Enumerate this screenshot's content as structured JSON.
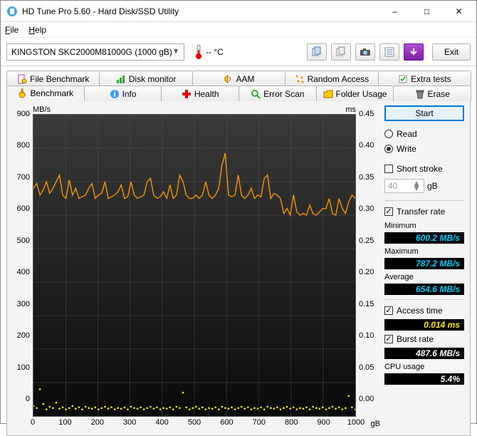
{
  "window": {
    "title": "HD Tune Pro 5.60 - Hard Disk/SSD Utility"
  },
  "menu": {
    "file": "File",
    "help": "Help"
  },
  "toolbar": {
    "drive": "KINGSTON SKC2000M81000G (1000 gB)",
    "temp": "-- °C",
    "exit": "Exit"
  },
  "tabs": {
    "row1": [
      "File Benchmark",
      "Disk monitor",
      "AAM",
      "Random Access",
      "Extra tests"
    ],
    "row2": [
      "Benchmark",
      "Info",
      "Health",
      "Error Scan",
      "Folder Usage",
      "Erase"
    ]
  },
  "chart": {
    "y_left_unit": "MB/s",
    "y_right_unit": "ms",
    "x_unit": "gB",
    "y_left": {
      "min": 0,
      "max": 900,
      "ticks": [
        0,
        100,
        200,
        300,
        400,
        500,
        600,
        700,
        800,
        900
      ]
    },
    "y_right": {
      "min": 0,
      "max": 0.45,
      "ticks": [
        "0.00",
        "0.05",
        "0.10",
        "0.15",
        "0.20",
        "0.25",
        "0.30",
        "0.35",
        "0.40",
        "0.45"
      ]
    },
    "x": {
      "min": 0,
      "max": 1000,
      "ticks": [
        0,
        100,
        200,
        300,
        400,
        500,
        600,
        700,
        800,
        900,
        1000
      ]
    },
    "transfer_color": "#ff9900",
    "access_color": "#ffee00",
    "bg_top": "#3a3a3a",
    "bg_bottom": "#0a0a0a",
    "grid_color": "#555555",
    "transfer": [
      680,
      695,
      660,
      675,
      700,
      665,
      680,
      700,
      720,
      660,
      650,
      705,
      660,
      680,
      650,
      655,
      660,
      680,
      695,
      650,
      660,
      665,
      700,
      650,
      655,
      660,
      670,
      690,
      650,
      655,
      700,
      660,
      650,
      655,
      660,
      700,
      710,
      660,
      650,
      655,
      670,
      650,
      690,
      650,
      660,
      720,
      700,
      660,
      650,
      650,
      660,
      650,
      660,
      700,
      660,
      650,
      660,
      680,
      750,
      785,
      660,
      655,
      660,
      720,
      660,
      650,
      660,
      680,
      650,
      660,
      655,
      710,
      720,
      650,
      665,
      660,
      650,
      605,
      620,
      600,
      660,
      610,
      600,
      605,
      600,
      630,
      605,
      600,
      610,
      620,
      620,
      650,
      605,
      600,
      650,
      620,
      605,
      640,
      660,
      650
    ],
    "access": [
      0.015,
      0.012,
      0.04,
      0.018,
      0.01,
      0.014,
      0.012,
      0.02,
      0.011,
      0.013,
      0.01,
      0.012,
      0.015,
      0.011,
      0.013,
      0.01,
      0.014,
      0.012,
      0.011,
      0.013,
      0.01,
      0.012,
      0.014,
      0.011,
      0.013,
      0.01,
      0.012,
      0.011,
      0.013,
      0.01,
      0.014,
      0.012,
      0.011,
      0.013,
      0.01,
      0.012,
      0.014,
      0.011,
      0.013,
      0.01,
      0.012,
      0.011,
      0.013,
      0.01,
      0.014,
      0.012,
      0.035,
      0.013,
      0.01,
      0.012,
      0.014,
      0.011,
      0.013,
      0.01,
      0.012,
      0.011,
      0.013,
      0.01,
      0.014,
      0.012,
      0.011,
      0.013,
      0.01,
      0.012,
      0.014,
      0.011,
      0.013,
      0.01,
      0.012,
      0.011,
      0.013,
      0.01,
      0.014,
      0.012,
      0.011,
      0.013,
      0.01,
      0.012,
      0.014,
      0.011,
      0.013,
      0.01,
      0.012,
      0.011,
      0.013,
      0.01,
      0.014,
      0.012,
      0.011,
      0.013,
      0.01,
      0.012,
      0.014,
      0.011,
      0.013,
      0.01,
      0.012,
      0.03,
      0.013,
      0.01
    ]
  },
  "side": {
    "start": "Start",
    "read": "Read",
    "write": "Write",
    "mode_selected": "write",
    "short_stroke": "Short stroke",
    "stroke_val": "40",
    "stroke_unit": "gB",
    "transfer_rate": "Transfer rate",
    "transfer_checked": true,
    "min_label": "Minimum",
    "min": "600.2 MB/s",
    "max_label": "Maximum",
    "max": "787.2 MB/s",
    "avg_label": "Average",
    "avg": "654.6 MB/s",
    "access_label": "Access time",
    "access_checked": true,
    "access": "0.014 ms",
    "burst_label": "Burst rate",
    "burst_checked": true,
    "burst": "487.6 MB/s",
    "cpu_label": "CPU usage",
    "cpu": "5.4%"
  }
}
